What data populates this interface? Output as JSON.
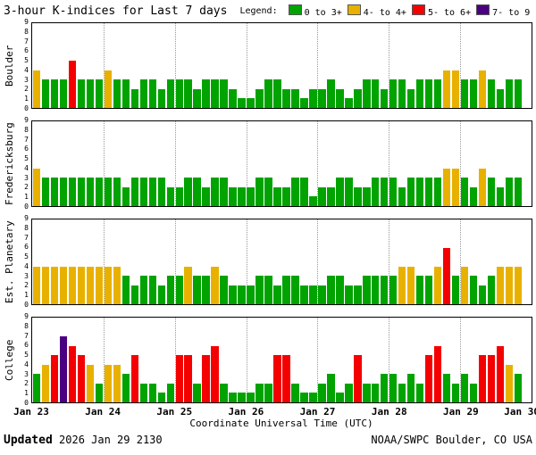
{
  "title": "3-hour K-indices for Last 7 days",
  "legend": {
    "label": "Legend:",
    "items": [
      {
        "label": "0 to 3+",
        "color": "#00A300",
        "range_min": 0,
        "range_max": 3
      },
      {
        "label": "4- to 4+",
        "color": "#E8B100",
        "range_min": 4,
        "range_max": 4
      },
      {
        "label": "5- to 6+",
        "color": "#F50000",
        "range_min": 5,
        "range_max": 6
      },
      {
        "label": "7- to 9",
        "color": "#4B0082",
        "range_min": 7,
        "range_max": 9
      }
    ]
  },
  "footer": {
    "updated_label": "Updated",
    "updated_value": "2026 Jan 29 2130",
    "credit": "NOAA/SWPC Boulder, CO USA"
  },
  "chart_data": {
    "type": "bar",
    "title": "3-hour K-indices for Last 7 days",
    "x_axis": {
      "label": "Coordinate Universal Time (UTC)",
      "tick_labels": [
        "Jan 23",
        "Jan 24",
        "Jan 25",
        "Jan 26",
        "Jan 27",
        "Jan 28",
        "Jan 29",
        "Jan 30"
      ],
      "days": 7,
      "slots_per_day": 8
    },
    "y_axis": {
      "min": 0,
      "max": 9,
      "ticks": [
        0,
        1,
        2,
        3,
        4,
        5,
        6,
        7,
        8,
        9
      ]
    },
    "color_rule": "k<=3 green, k=4 yellow, 5<=k<=6 red, k>=7 purple",
    "panels": [
      {
        "station": "Boulder",
        "values": [
          4,
          3,
          3,
          3,
          5,
          3,
          3,
          3,
          4,
          3,
          3,
          2,
          3,
          3,
          2,
          3,
          3,
          3,
          2,
          3,
          3,
          3,
          2,
          1,
          1,
          2,
          3,
          3,
          2,
          2,
          1,
          2,
          2,
          3,
          2,
          1,
          2,
          3,
          3,
          2,
          3,
          3,
          2,
          3,
          3,
          3,
          4,
          4,
          3,
          3,
          4,
          3,
          2,
          3,
          3
        ]
      },
      {
        "station": "Fredericksburg",
        "values": [
          4,
          3,
          3,
          3,
          3,
          3,
          3,
          3,
          3,
          3,
          2,
          3,
          3,
          3,
          3,
          2,
          2,
          3,
          3,
          2,
          3,
          3,
          2,
          2,
          2,
          3,
          3,
          2,
          2,
          3,
          3,
          1,
          2,
          2,
          3,
          3,
          2,
          2,
          3,
          3,
          3,
          2,
          3,
          3,
          3,
          3,
          4,
          4,
          3,
          2,
          4,
          3,
          2,
          3,
          3
        ]
      },
      {
        "station": "Est. Planetary",
        "values": [
          4,
          4,
          4,
          4,
          4,
          4,
          4,
          4,
          4,
          4,
          3,
          2,
          3,
          3,
          2,
          3,
          3,
          4,
          3,
          3,
          4,
          3,
          2,
          2,
          2,
          3,
          3,
          2,
          3,
          3,
          2,
          2,
          2,
          3,
          3,
          2,
          2,
          3,
          3,
          3,
          3,
          4,
          4,
          3,
          3,
          4,
          6,
          3,
          4,
          3,
          2,
          3,
          4,
          4,
          4
        ]
      },
      {
        "station": "College",
        "values": [
          3,
          4,
          5,
          7,
          6,
          5,
          4,
          2,
          4,
          4,
          3,
          5,
          2,
          2,
          1,
          2,
          5,
          5,
          2,
          5,
          6,
          2,
          1,
          1,
          1,
          2,
          2,
          5,
          5,
          2,
          1,
          1,
          2,
          3,
          1,
          2,
          5,
          2,
          2,
          3,
          3,
          2,
          3,
          2,
          5,
          6,
          3,
          2,
          3,
          2,
          5,
          5,
          6,
          4,
          3
        ]
      }
    ]
  }
}
